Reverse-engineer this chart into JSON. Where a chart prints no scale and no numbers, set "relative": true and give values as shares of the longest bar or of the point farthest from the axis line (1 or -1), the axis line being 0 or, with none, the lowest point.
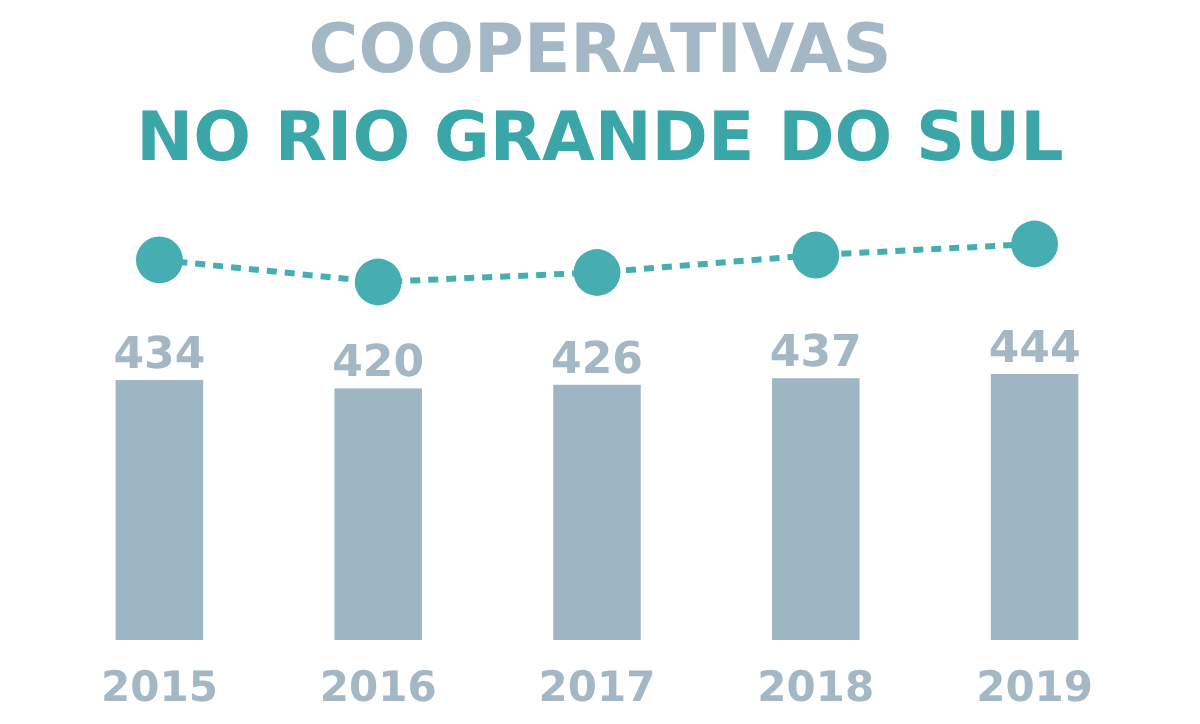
{
  "chart_data": [
    {
      "type": "line",
      "title": "COOPERATIVAS",
      "subtitle": "NO RIO GRANDE DO SUL",
      "categories": [
        null,
        null,
        null,
        null,
        null
      ],
      "relative": true,
      "color": "#46aeb0",
      "values": [
        0.58,
        0,
        0.25,
        0.71,
        1
      ],
      "tick_labels": false,
      "marker": "circle",
      "line_style": "dashed"
    },
    {
      "type": "bar",
      "categories": [
        "2015",
        "2016",
        "2017",
        "2018",
        "2019"
      ],
      "color": "#9eb6c3",
      "values": [
        434,
        420,
        426,
        437,
        444
      ],
      "value_labels": [
        "434",
        "420",
        "426",
        "437",
        "444"
      ],
      "tick_labels": "x"
    }
  ]
}
